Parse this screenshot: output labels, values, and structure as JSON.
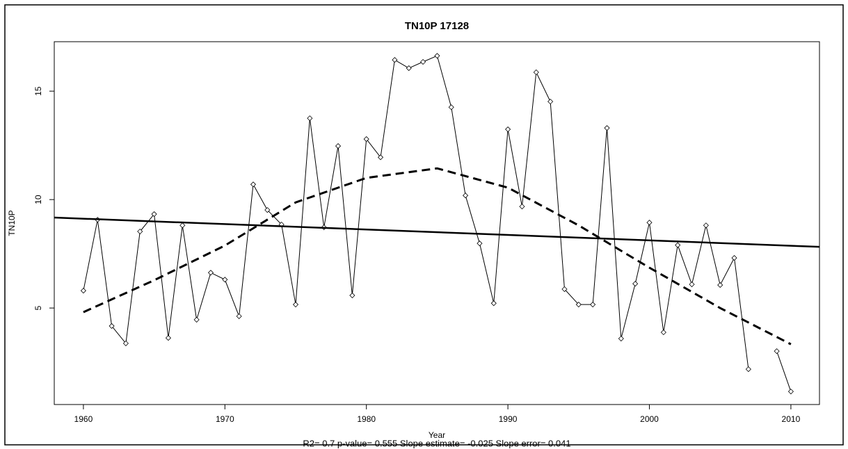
{
  "chart_data": {
    "type": "line",
    "title": "TN10P   17128",
    "x_label": "Year",
    "y_label": "TN10P",
    "footer": "R2= 0.7  p-value= 0.555  Slope estimate= -0.025  Slope error= 0.041",
    "xlim": [
      1957.94,
      2012.02
    ],
    "ylim": [
      0.55,
      17.28
    ],
    "xticks": [
      1960,
      1970,
      1980,
      1990,
      2000,
      2010
    ],
    "yticks": [
      5,
      10,
      15
    ],
    "series": [
      {
        "color": "#000000",
        "marker": true,
        "dash": false,
        "width": 1,
        "x": [
          1960,
          1961,
          1962,
          1963,
          1964,
          1965,
          1966,
          1967,
          1968,
          1969,
          1970,
          1971,
          1972,
          1973,
          1974,
          1975,
          1976,
          1977,
          1978,
          1979,
          1980,
          1981,
          1982,
          1983,
          1984,
          1985,
          1986,
          1987,
          1988,
          1989,
          1990,
          1991,
          1992,
          1993,
          1994,
          1995,
          1996,
          1997,
          1998,
          1999,
          2000,
          2001,
          2002,
          2003,
          2004,
          2005,
          2006,
          2007,
          2008,
          2009,
          2010
        ],
        "values": [
          5.8,
          9.07,
          4.17,
          3.37,
          8.53,
          9.33,
          3.62,
          8.81,
          4.46,
          6.63,
          6.31,
          4.62,
          10.7,
          9.52,
          8.85,
          5.16,
          13.75,
          8.72,
          12.47,
          5.58,
          12.79,
          11.95,
          16.44,
          16.06,
          16.35,
          16.63,
          14.26,
          10.19,
          7.98,
          5.22,
          13.24,
          9.68,
          15.87,
          14.52,
          5.87,
          5.16,
          5.16,
          13.3,
          3.59,
          6.12,
          8.94,
          3.88,
          7.9,
          6.09,
          8.81,
          6.06,
          7.31,
          2.18,
          null,
          3.01,
          1.15
        ]
      },
      {
        "color": "#000000",
        "marker": false,
        "dash": false,
        "width": 2.5,
        "x": [
          1957.94,
          2012.02
        ],
        "values": [
          9.17,
          7.82
        ]
      },
      {
        "color": "#000000",
        "marker": false,
        "dash": true,
        "width": 3,
        "x": [
          1960,
          1965,
          1970,
          1975,
          1980,
          1985,
          1990,
          1995,
          2000,
          2005,
          2010
        ],
        "values": [
          4.81,
          6.28,
          7.88,
          9.87,
          11.0,
          11.44,
          10.55,
          8.81,
          6.86,
          5.0,
          3.33
        ]
      }
    ]
  }
}
